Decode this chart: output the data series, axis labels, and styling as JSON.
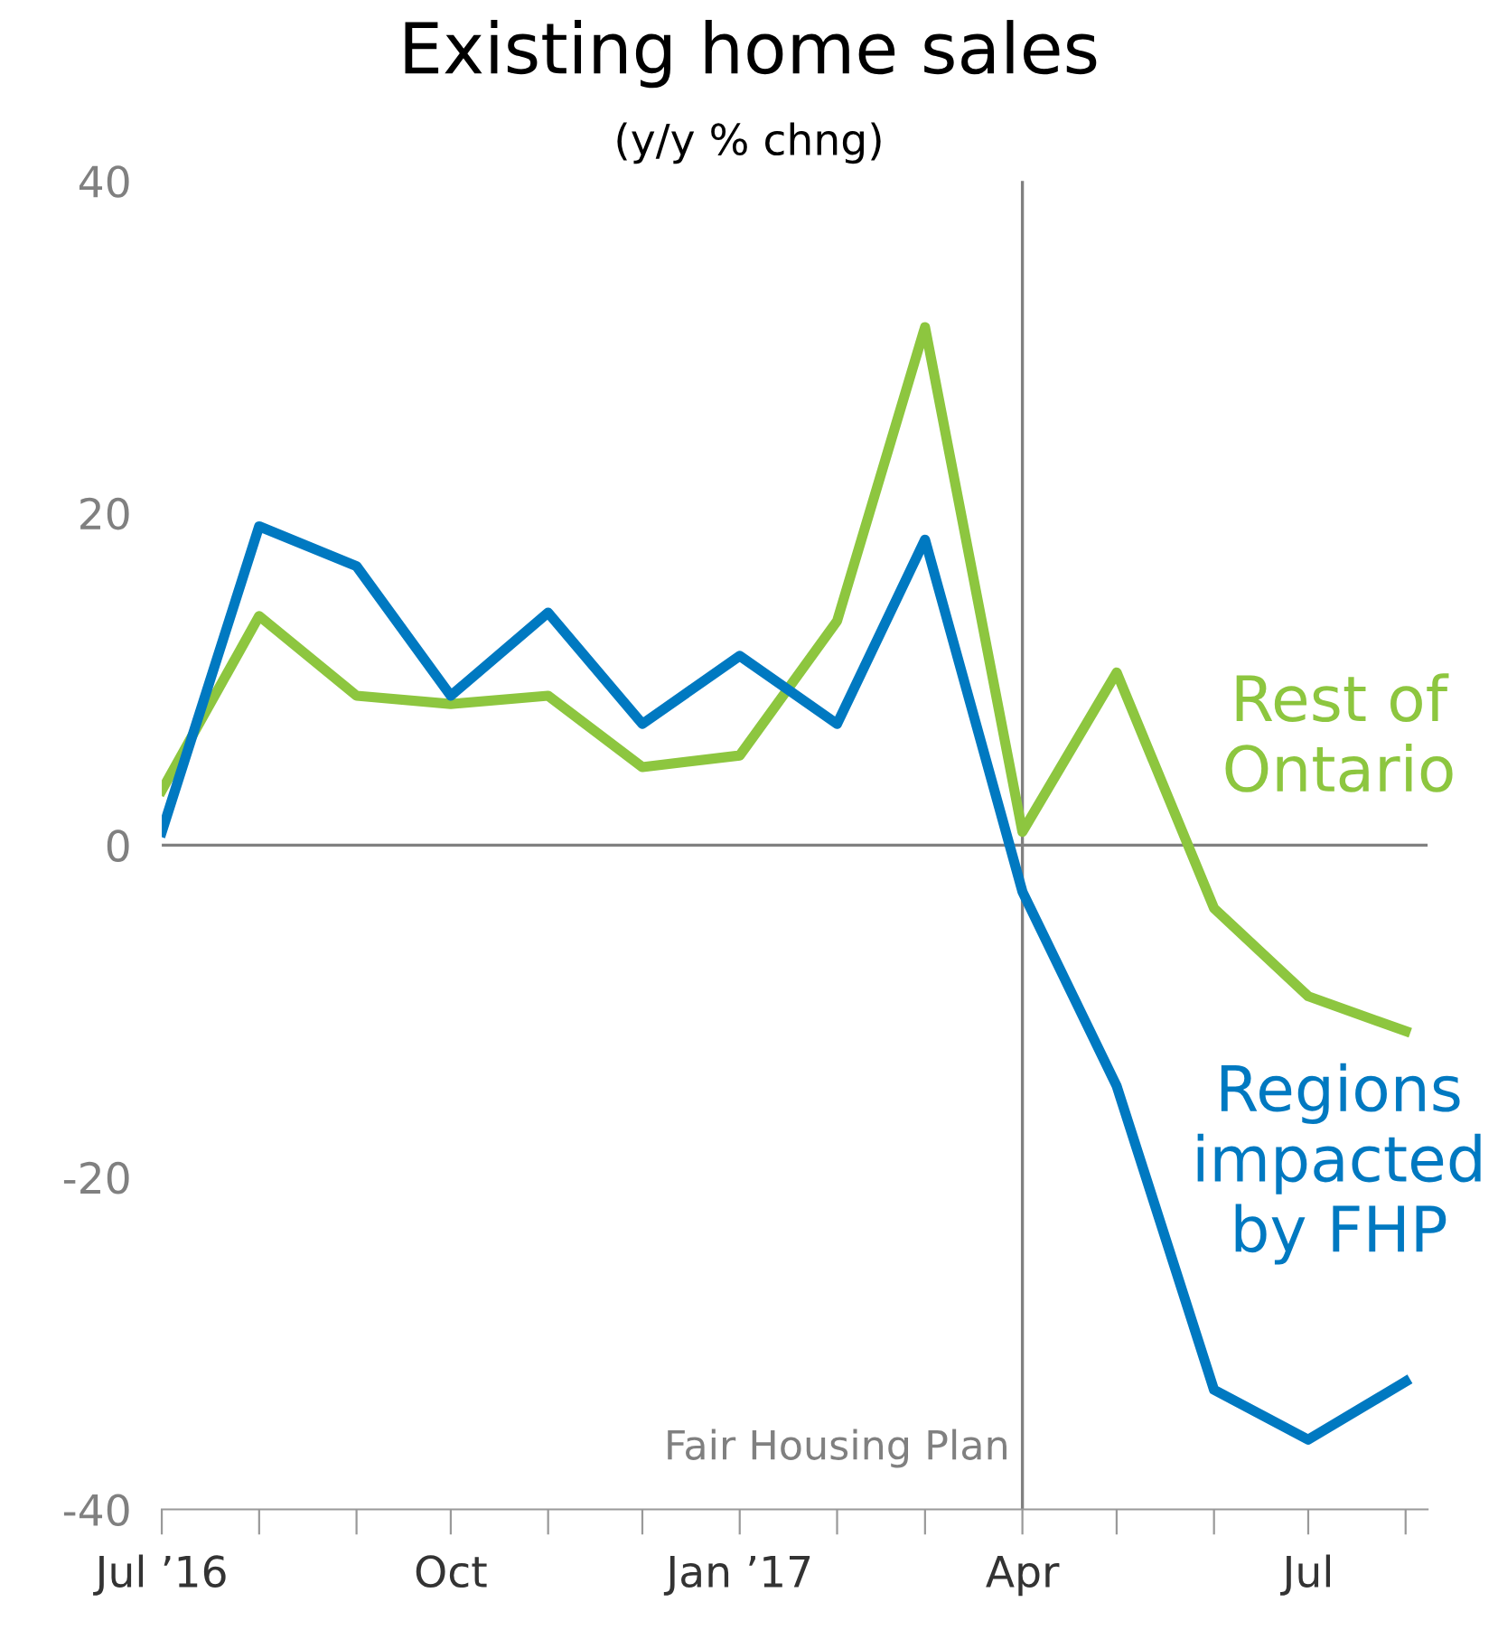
{
  "chart_data": {
    "type": "line",
    "title": "Existing home sales",
    "subtitle": "(y/y % chng)",
    "x": [
      "2016-07",
      "2016-08",
      "2016-09",
      "2016-10",
      "2016-11",
      "2016-12",
      "2017-01",
      "2017-02",
      "2017-03",
      "2017-04",
      "2017-05",
      "2017-06",
      "2017-07",
      "2017-08"
    ],
    "series": [
      {
        "name": "Rest of Ontario",
        "color": "#8dc63f",
        "values": [
          3.3,
          13.8,
          9.0,
          8.5,
          9.0,
          4.7,
          5.4,
          13.5,
          31.2,
          0.8,
          10.4,
          -3.8,
          -9.1,
          -11.2
        ]
      },
      {
        "name": "Regions impacted by FHP",
        "color": "#0079c1",
        "values": [
          0.8,
          19.2,
          16.8,
          9.0,
          14.0,
          7.3,
          11.4,
          7.3,
          18.4,
          -2.8,
          -14.5,
          -32.8,
          -35.8,
          -32.3
        ]
      }
    ],
    "xlim": [
      "2016-07",
      "2017-08-08"
    ],
    "xticks": [
      {
        "value": "2016-07",
        "label": "Jul ’16"
      },
      {
        "value": "2016-08",
        "label": null
      },
      {
        "value": "2016-09",
        "label": null
      },
      {
        "value": "2016-10",
        "label": "Oct"
      },
      {
        "value": "2016-11",
        "label": null
      },
      {
        "value": "2016-12",
        "label": null
      },
      {
        "value": "2017-01",
        "label": "Jan ’17"
      },
      {
        "value": "2017-02",
        "label": null
      },
      {
        "value": "2017-03",
        "label": null
      },
      {
        "value": "2017-04",
        "label": "Apr"
      },
      {
        "value": "2017-05",
        "label": null
      },
      {
        "value": "2017-06",
        "label": null
      },
      {
        "value": "2017-07",
        "label": "Jul"
      },
      {
        "value": "2017-08",
        "label": null
      }
    ],
    "ylim": [
      -40,
      40
    ],
    "yticks": [
      -40,
      -20,
      0,
      20,
      40
    ],
    "ref_lines": [
      {
        "axis": "x",
        "value": "2017-04",
        "label": "Fair Housing Plan",
        "color": "#808080"
      },
      {
        "axis": "y",
        "value": 0,
        "label": null,
        "color": "#808080"
      }
    ],
    "grid": false,
    "legend": false,
    "marker": "none",
    "line_style": "solid"
  }
}
